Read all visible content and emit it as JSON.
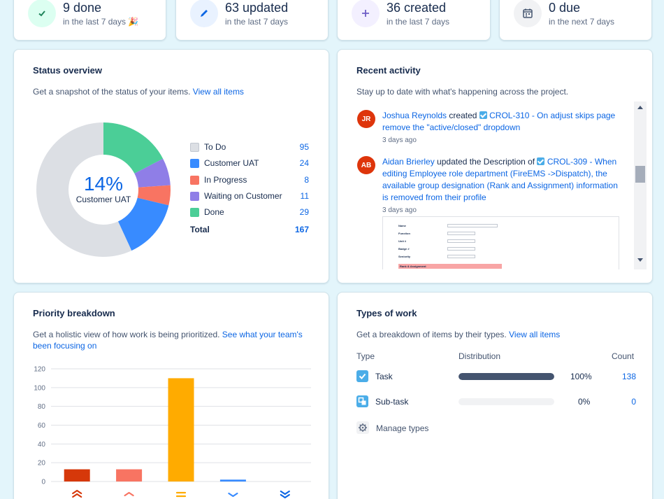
{
  "stats": [
    {
      "title": "9 done",
      "subtitle": "in the last 7 days 🎉",
      "icon": "check-icon",
      "bg": "#dcfff1",
      "fg": "#1f845a"
    },
    {
      "title": "63 updated",
      "subtitle": "in the last 7 days",
      "icon": "pencil-icon",
      "bg": "#e9f2ff",
      "fg": "#0c66e4"
    },
    {
      "title": "36 created",
      "subtitle": "in the last 7 days",
      "icon": "plus-icon",
      "bg": "#f3f0ff",
      "fg": "#6e5dc6"
    },
    {
      "title": "0 due",
      "subtitle": "in the next 7 days",
      "icon": "calendar-icon",
      "bg": "#f1f2f4",
      "fg": "#44546f"
    }
  ],
  "status": {
    "title": "Status overview",
    "desc": "Get a snapshot of the status of your items.",
    "link": "View all items",
    "center_pct": "14%",
    "center_label": "Customer UAT",
    "legend": [
      {
        "label": "To Do",
        "count": "95",
        "color": "#dcdfe4"
      },
      {
        "label": "Customer UAT",
        "count": "24",
        "color": "#388bff"
      },
      {
        "label": "In Progress",
        "count": "8",
        "color": "#f87462"
      },
      {
        "label": "Waiting on Customer",
        "count": "11",
        "color": "#8f7ee7"
      },
      {
        "label": "Done",
        "count": "29",
        "color": "#4bce97"
      }
    ],
    "total_label": "Total",
    "total": "167"
  },
  "activity": {
    "title": "Recent activity",
    "desc": "Stay up to date with what's happening across the project.",
    "items": [
      {
        "initials": "JR",
        "user": "Joshua Reynolds",
        "action": "created",
        "issue": "CROL-310 - On adjust skips page remove the \"active/closed\" dropdown",
        "time": "3 days ago"
      },
      {
        "initials": "AB",
        "user": "Aidan Brierley",
        "action": "updated the Description of",
        "issue": "CROL-309 - When editing Employee role department (FireEMS ->Dispatch), the available group designation (Rank and Assignment) information is removed from their profile",
        "time": "3 days ago"
      }
    ],
    "thumb_fields": [
      "Name",
      "Function",
      "Unit #",
      "Badge #",
      "Seniority",
      "Rank & Assignment"
    ]
  },
  "priority": {
    "title": "Priority breakdown",
    "desc": "Get a holistic view of how work is being prioritized.",
    "link": "See what your team's been focusing on"
  },
  "chart_data": {
    "type": "bar",
    "categories": [
      "Highest",
      "High",
      "Medium",
      "Low",
      "Lowest"
    ],
    "values": [
      13,
      13,
      110,
      2,
      0
    ],
    "colors": [
      "#d6380a",
      "#f87462",
      "#ffab00",
      "#388bff",
      "#0c66e4"
    ],
    "icons": [
      "double-chevron-up-icon",
      "chevron-up-icon",
      "equals-icon",
      "chevron-down-icon",
      "double-chevron-down-icon"
    ],
    "yticks": [
      0,
      20,
      40,
      60,
      80,
      100,
      120
    ],
    "ylim": [
      0,
      120
    ]
  },
  "types": {
    "title": "Types of work",
    "desc": "Get a breakdown of items by their types.",
    "link": "View all items",
    "col_type": "Type",
    "col_dist": "Distribution",
    "col_count": "Count",
    "rows": [
      {
        "label": "Task",
        "pct": "100%",
        "fraction": 1.0,
        "count": "138",
        "icon": "task-icon"
      },
      {
        "label": "Sub-task",
        "pct": "0%",
        "fraction": 0.0,
        "count": "0",
        "icon": "subtask-icon"
      }
    ],
    "manage_label": "Manage types"
  }
}
